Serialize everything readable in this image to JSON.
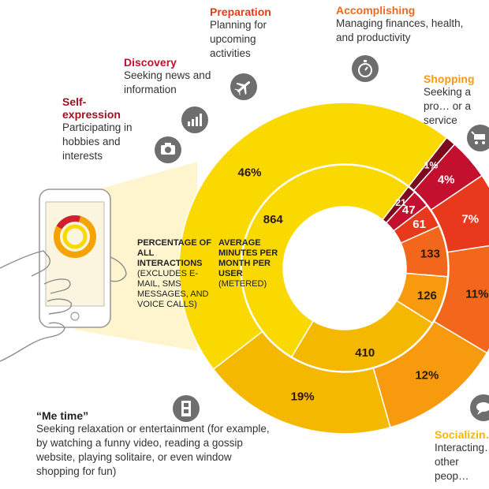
{
  "labels": {
    "outer_heading": "PERCENTAGE OF ALL INTERACTIONS",
    "outer_note": "(EXCLUDES E-MAIL, SMS MESSAGES, AND VOICE CALLS)",
    "inner_heading": "AVERAGE MINUTES PER MONTH PER USER",
    "inner_note": "(METERED)"
  },
  "categories": [
    {
      "key": "self-expression",
      "title": "Self-expression",
      "desc": "Participating in hobbies and interests",
      "color": "#7a0a1c",
      "icon": "camera-icon"
    },
    {
      "key": "discovery",
      "title": "Discovery",
      "desc": "Seeking news and information",
      "color": "#c4102f",
      "icon": "bar-chart-icon"
    },
    {
      "key": "preparation",
      "title": "Preparation",
      "desc": "Planning for upcoming activities",
      "color": "#e8391c",
      "icon": "airplane-icon"
    },
    {
      "key": "accomplishing",
      "title": "Accomplishing",
      "desc": "Managing finances, health, and productivity",
      "color": "#f2671c",
      "icon": "stopwatch-icon"
    },
    {
      "key": "shopping",
      "title": "Shopping",
      "desc": "Seeking a pro… or a service",
      "color": "#f79a0e",
      "icon": "cart-icon"
    },
    {
      "key": "socializing",
      "title": "Socializin…",
      "desc": "Interacting… other peop…",
      "color": "#f5b800",
      "icon": "chat-icon"
    },
    {
      "key": "me-time",
      "title": "“Me time”",
      "desc": "Seeking relaxation or entertainment (for example, by watching a funny video, reading a gossip website, playing solitaire, or even window shopping for fun)",
      "color": "#fad900",
      "icon": "film-icon"
    }
  ],
  "chart_data": {
    "type": "donut",
    "categories": [
      "Self-expression",
      "Discovery",
      "Preparation",
      "Accomplishing",
      "Shopping",
      "Socializing",
      "Me time"
    ],
    "series": [
      {
        "name": "PERCENTAGE OF ALL INTERACTIONS",
        "values": [
          1,
          4,
          7,
          11,
          12,
          19,
          46
        ],
        "labels": [
          "1%",
          "4%",
          "7%",
          "11%",
          "12%",
          "19%",
          "46%"
        ]
      },
      {
        "name": "AVERAGE MINUTES PER MONTH PER USER",
        "values": [
          21,
          47,
          61,
          133,
          126,
          410,
          864
        ],
        "labels": [
          "21",
          "47",
          "61",
          "133",
          "126",
          "410",
          "864"
        ]
      }
    ]
  }
}
